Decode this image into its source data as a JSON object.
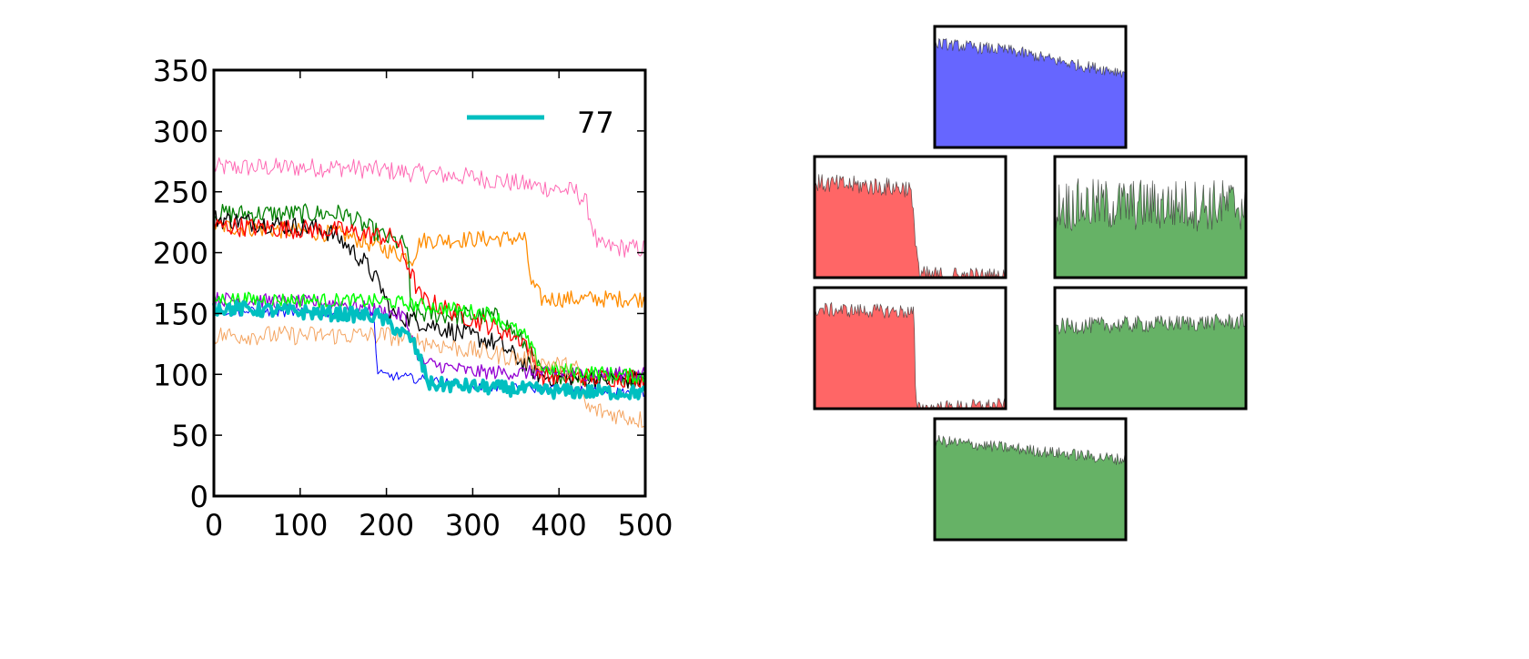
{
  "chart_data": [
    {
      "type": "line",
      "title": "",
      "xlabel": "",
      "ylabel": "",
      "xlim": [
        0,
        500
      ],
      "ylim": [
        0,
        350
      ],
      "xticks": [
        0,
        100,
        200,
        300,
        400,
        500
      ],
      "yticks": [
        0,
        50,
        100,
        150,
        200,
        250,
        300,
        350
      ],
      "x_tick_labels": [
        "0",
        "100",
        "200",
        "300",
        "400",
        "500"
      ],
      "y_tick_labels": [
        "0",
        "50",
        "100",
        "150",
        "200",
        "250",
        "300",
        "350"
      ],
      "grid": false,
      "legend": {
        "placement": "top-right",
        "entries": [
          {
            "label": "77",
            "color": "#00bfc0"
          }
        ]
      },
      "series": [
        {
          "color": "#ff69b4",
          "width": 1,
          "noise": 8,
          "profile": [
            [
              0,
              270
            ],
            [
              150,
              270
            ],
            [
              300,
              262
            ],
            [
              420,
              250
            ],
            [
              432,
              240
            ],
            [
              445,
              205
            ],
            [
              500,
              203
            ]
          ]
        },
        {
          "color": "#ff8c00",
          "width": 1.3,
          "noise": 7,
          "profile": [
            [
              0,
              222
            ],
            [
              150,
              215
            ],
            [
              230,
              195
            ],
            [
              240,
              210
            ],
            [
              360,
              212
            ],
            [
              368,
              175
            ],
            [
              380,
              162
            ],
            [
              500,
              162
            ]
          ]
        },
        {
          "color": "#008000",
          "width": 1.3,
          "noise": 8,
          "profile": [
            [
              0,
              232
            ],
            [
              150,
              232
            ],
            [
              200,
              212
            ],
            [
              225,
              205
            ],
            [
              228,
              150
            ],
            [
              330,
              147
            ],
            [
              360,
              125
            ],
            [
              380,
              100
            ],
            [
              500,
              97
            ]
          ]
        },
        {
          "color": "#000000",
          "width": 1.3,
          "noise": 8,
          "profile": [
            [
              0,
              228
            ],
            [
              120,
              220
            ],
            [
              140,
              215
            ],
            [
              175,
              192
            ],
            [
              195,
              170
            ],
            [
              205,
              150
            ],
            [
              330,
              125
            ],
            [
              380,
              98
            ],
            [
              500,
              95
            ]
          ]
        },
        {
          "color": "#ff0000",
          "width": 1.3,
          "noise": 8,
          "profile": [
            [
              0,
              222
            ],
            [
              150,
              218
            ],
            [
              210,
              212
            ],
            [
              225,
              190
            ],
            [
              240,
              162
            ],
            [
              320,
              140
            ],
            [
              360,
              128
            ],
            [
              380,
              98
            ],
            [
              500,
              97
            ]
          ]
        },
        {
          "color": "#9400d3",
          "width": 1.3,
          "noise": 6,
          "profile": [
            [
              0,
              162
            ],
            [
              150,
              158
            ],
            [
              220,
              148
            ],
            [
              240,
              110
            ],
            [
              300,
              102
            ],
            [
              500,
              100
            ]
          ]
        },
        {
          "color": "#00ff00",
          "width": 1.5,
          "noise": 6,
          "profile": [
            [
              0,
              162
            ],
            [
              200,
              160
            ],
            [
              320,
              150
            ],
            [
              360,
              132
            ],
            [
              380,
              105
            ],
            [
              500,
              98
            ]
          ]
        },
        {
          "color": "#f4a460",
          "width": 1,
          "noise": 8,
          "profile": [
            [
              0,
              132
            ],
            [
              200,
              132
            ],
            [
              280,
              122
            ],
            [
              380,
              110
            ],
            [
              420,
              105
            ],
            [
              432,
              72
            ],
            [
              500,
              62
            ]
          ]
        },
        {
          "color": "#0000ff",
          "width": 1,
          "noise": 4,
          "profile": [
            [
              0,
              152
            ],
            [
              185,
              150
            ],
            [
              190,
              100
            ],
            [
              240,
              96
            ],
            [
              300,
              90
            ],
            [
              500,
              85
            ]
          ]
        },
        {
          "color": "#00bfc0",
          "width": 4,
          "noise": 6,
          "profile": [
            [
              0,
              155
            ],
            [
              190,
              148
            ],
            [
              230,
              128
            ],
            [
              250,
              92
            ],
            [
              400,
              86
            ],
            [
              500,
              85
            ]
          ]
        }
      ]
    },
    {
      "type": "area",
      "panel": "top",
      "series": [
        {
          "name": "",
          "color": "#ff6666",
          "profile": [
            [
              0,
              0.58
            ],
            [
              1,
              0.52
            ]
          ],
          "noise": 0.03
        },
        {
          "name": "",
          "color": "#6666ff",
          "profile": [
            [
              0,
              0.86
            ],
            [
              0.4,
              0.8
            ],
            [
              0.75,
              0.68
            ],
            [
              1,
              0.62
            ]
          ],
          "noise": 0.05
        }
      ]
    },
    {
      "type": "area",
      "panel": "mid-left",
      "series": [
        {
          "name": "",
          "color": "#ff6666",
          "profile": [
            [
              0,
              0.78
            ],
            [
              0.5,
              0.74
            ],
            [
              0.55,
              0.02
            ],
            [
              1,
              0.0
            ]
          ],
          "noise": 0.08
        }
      ]
    },
    {
      "type": "area",
      "panel": "mid-right",
      "series": [
        {
          "name": "",
          "color": "#66b266",
          "profile": [
            [
              0,
              0.6
            ],
            [
              1,
              0.6
            ]
          ],
          "noise": 0.22
        }
      ]
    },
    {
      "type": "area",
      "panel": "low-left",
      "series": [
        {
          "name": "",
          "color": "#ff6666",
          "profile": [
            [
              0,
              0.82
            ],
            [
              0.52,
              0.8
            ],
            [
              0.53,
              0.0
            ],
            [
              1,
              0.03
            ]
          ],
          "noise": 0.06
        }
      ]
    },
    {
      "type": "area",
      "panel": "low-right",
      "series": [
        {
          "name": "",
          "color": "#66b266",
          "profile": [
            [
              0,
              0.68
            ],
            [
              1,
              0.72
            ]
          ],
          "noise": 0.07
        }
      ]
    },
    {
      "type": "area",
      "panel": "bottom",
      "series": [
        {
          "name": "",
          "color": "#66b266",
          "profile": [
            [
              0,
              0.82
            ],
            [
              1,
              0.66
            ]
          ],
          "noise": 0.05
        }
      ]
    }
  ]
}
